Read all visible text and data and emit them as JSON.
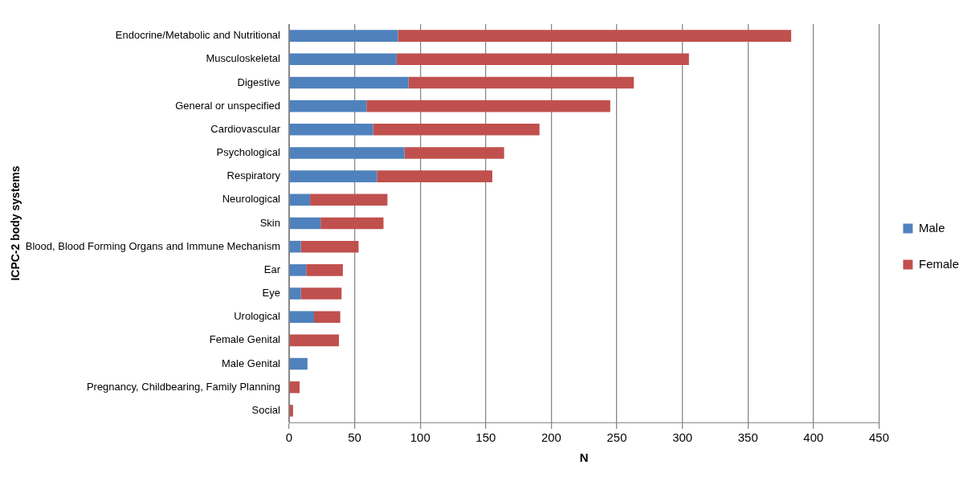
{
  "chart_data": {
    "type": "bar",
    "orientation": "horizontal",
    "stacked": true,
    "xlabel": "N",
    "ylabel": "ICPC-2 body systems",
    "categories": [
      "Endocrine/Metabolic and Nutritional",
      "Musculoskeletal",
      "Digestive",
      "General or unspecified",
      "Cardiovascular",
      "Psychological",
      "Respiratory",
      "Neurological",
      "Skin",
      "Blood, Blood Forming Organs and Immune Mechanism",
      "Ear",
      "Eye",
      "Urological",
      "Female Genital",
      "Male Genital",
      "Pregnancy, Childbearing, Family Planning",
      "Social"
    ],
    "series": [
      {
        "name": "Male",
        "color": "#4f81bd",
        "values": [
          83,
          82,
          91,
          59,
          64,
          88,
          67,
          16,
          24,
          9,
          13,
          9,
          19,
          0,
          14,
          0,
          0
        ]
      },
      {
        "name": "Female",
        "color": "#c0504d",
        "values": [
          300,
          223,
          172,
          186,
          127,
          76,
          88,
          59,
          48,
          44,
          28,
          31,
          20,
          38,
          0,
          8,
          3
        ]
      }
    ],
    "xlim": [
      0,
      450
    ],
    "xticks": [
      0,
      50,
      100,
      150,
      200,
      250,
      300,
      350,
      400,
      450
    ],
    "grid": "x",
    "legend": "right"
  }
}
